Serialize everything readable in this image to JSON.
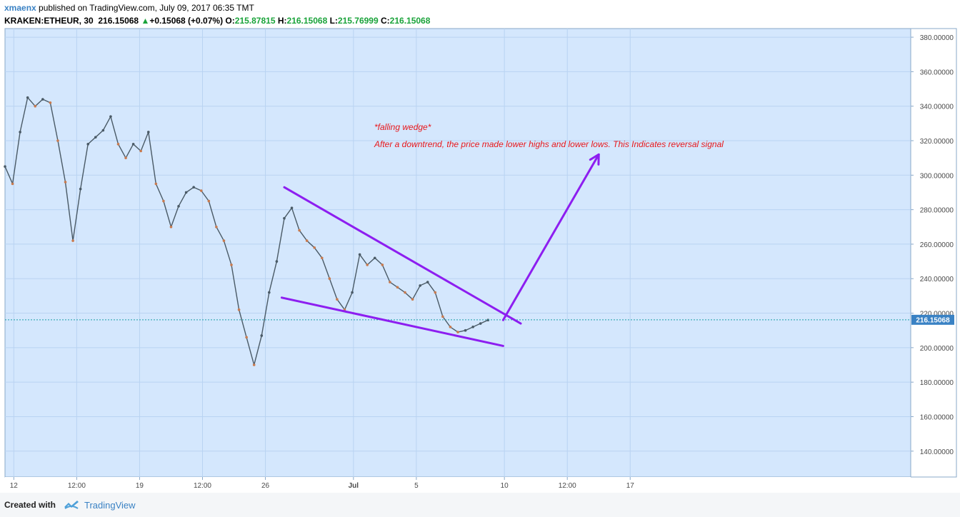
{
  "header": {
    "author": "xmaenx",
    "published_text": "published on TradingView.com, July 09, 2017 06:35 TMT",
    "symbol": "KRAKEN:ETHEUR, 30",
    "last_price": "216.15068",
    "change": "+0.15068 (+0.07%)",
    "o_label": "O:",
    "o_value": "215.87815",
    "h_label": "H:",
    "h_value": "216.15068",
    "l_label": "L:",
    "l_value": "215.76999",
    "c_label": "C:",
    "c_value": "216.15068"
  },
  "colors": {
    "plot_bg": "#d4e7fd",
    "grid": "#b9d3f2",
    "up_candle": "#4a5a66",
    "down_candle": "#c97a4e",
    "annotation_line": "#8d1ef0",
    "annotation_text": "#e8171b",
    "last_price_line": "#1b9fa8",
    "price_label_bg": "#3a82c4"
  },
  "chart_data": {
    "type": "line",
    "xlim": [
      0,
      36
    ],
    "ylim": [
      125,
      385
    ],
    "ticks_y": [
      "140.00000",
      "160.00000",
      "180.00000",
      "200.00000",
      "220.00000",
      "240.00000",
      "260.00000",
      "280.00000",
      "300.00000",
      "320.00000",
      "340.00000",
      "360.00000",
      "380.00000"
    ],
    "ticks_x": [
      {
        "t": 0.35,
        "label": "12"
      },
      {
        "t": 2.85,
        "label": "12:00"
      },
      {
        "t": 5.35,
        "label": "19"
      },
      {
        "t": 7.85,
        "label": "12:00"
      },
      {
        "t": 10.35,
        "label": "26"
      },
      {
        "t": 13.85,
        "label": "Jul"
      },
      {
        "t": 16.35,
        "label": "5"
      },
      {
        "t": 19.85,
        "label": "10"
      },
      {
        "t": 22.35,
        "label": "12:00"
      },
      {
        "t": 24.85,
        "label": "17"
      }
    ],
    "series": [
      {
        "x": [
          0,
          0.3,
          0.6,
          0.9,
          1.2,
          1.5,
          1.8,
          2.1,
          2.4,
          2.7,
          3.0,
          3.3,
          3.6,
          3.9,
          4.2,
          4.5,
          4.8,
          5.1,
          5.4,
          5.7,
          6.0,
          6.3,
          6.6,
          6.9,
          7.2,
          7.5,
          7.8,
          8.1,
          8.4,
          8.7,
          9.0,
          9.3,
          9.6,
          9.9,
          10.2,
          10.5,
          10.8,
          11.1,
          11.4,
          11.7,
          12.0,
          12.3,
          12.6,
          12.9,
          13.2,
          13.5,
          13.8,
          14.1,
          14.4,
          14.7,
          15.0,
          15.3,
          15.6,
          15.9,
          16.2,
          16.5,
          16.8,
          17.1,
          17.4,
          17.7,
          18.0,
          18.3,
          18.6,
          18.9,
          19.2
        ],
        "values": [
          305,
          295,
          325,
          345,
          340,
          344,
          342,
          320,
          296,
          262,
          292,
          318,
          322,
          326,
          334,
          318,
          310,
          318,
          314,
          325,
          295,
          285,
          270,
          282,
          290,
          293,
          291,
          285,
          270,
          262,
          248,
          222,
          206,
          190,
          207,
          232,
          250,
          275,
          281,
          268,
          262,
          258,
          252,
          240,
          228,
          222,
          232,
          254,
          248,
          252,
          248,
          238,
          235,
          232,
          228,
          236,
          238,
          232,
          218,
          212,
          209,
          210,
          212,
          214,
          216
        ]
      }
    ],
    "annotations": {
      "title": "*falling wedge*",
      "text": "After a downtrend, the price made lower highs and lower lows. This Indicates reversal signal",
      "upper_line": [
        [
          11.1,
          293
        ],
        [
          20.5,
          214
        ]
      ],
      "lower_line": [
        [
          11.0,
          229
        ],
        [
          19.8,
          201
        ]
      ],
      "arrow": [
        [
          19.8,
          216
        ],
        [
          23.6,
          312
        ]
      ]
    },
    "last_price_label": "216.15068",
    "last_price": 216.15068
  },
  "footer": {
    "created_with": "Created with",
    "brand": "TradingView"
  }
}
